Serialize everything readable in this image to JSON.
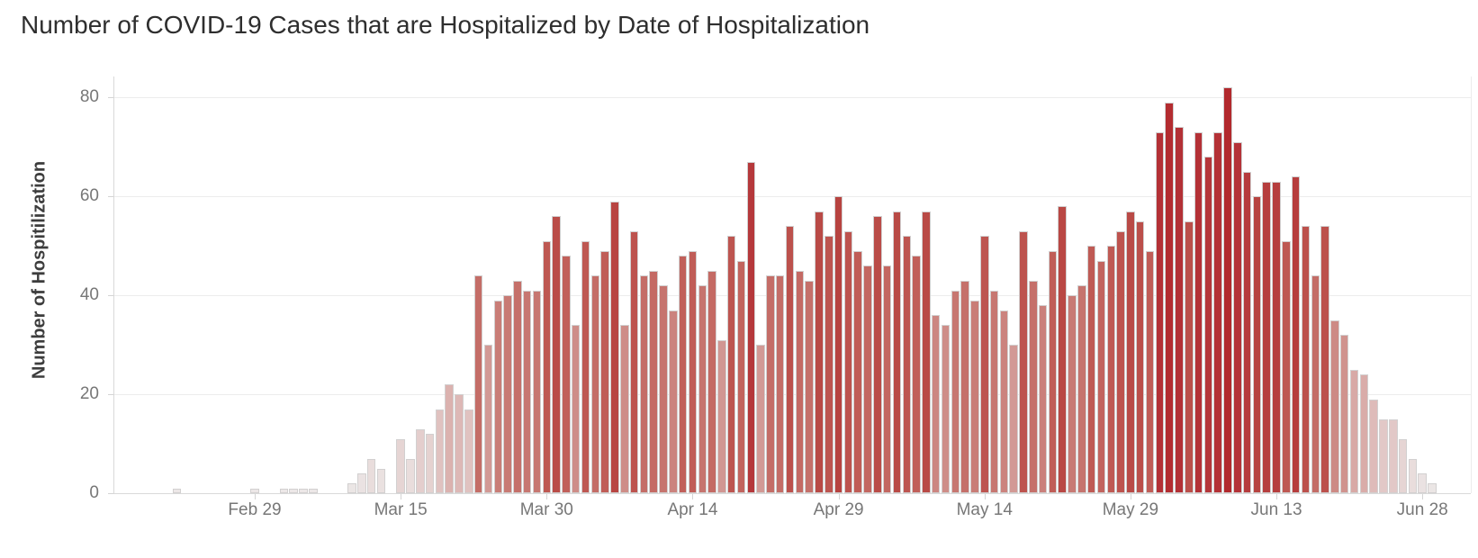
{
  "title": "Number of COVID-19 Cases that are Hospitalized by Date of Hospitalization",
  "y_axis": {
    "title": "Number of Hospitilization",
    "ticks": [
      0,
      20,
      40,
      60,
      80
    ]
  },
  "x_axis": {
    "ticks": [
      {
        "label": "Feb 29",
        "index": 8
      },
      {
        "label": "Mar 15",
        "index": 23
      },
      {
        "label": "Mar 30",
        "index": 38
      },
      {
        "label": "Apr 14",
        "index": 53
      },
      {
        "label": "Apr 29",
        "index": 68
      },
      {
        "label": "May 14",
        "index": 83
      },
      {
        "label": "May 29",
        "index": 98
      },
      {
        "label": "Jun 13",
        "index": 113
      },
      {
        "label": "Jun 28",
        "index": 128
      }
    ]
  },
  "colors": {
    "background": "#ffffff",
    "gridline": "#ececec",
    "axis_line": "#d9d9d9",
    "tick_mark": "#d4d4d4",
    "title_text": "#2e2e2e",
    "axis_text": "#777777",
    "y_title_text": "#3d3d3d",
    "bar_border": "#d2d0d0",
    "bar_low": "#ece9e9",
    "bar_high": "#b2292d"
  },
  "chart_data": {
    "type": "bar",
    "title": "Number of COVID-19 Cases that are Hospitalized by Date of Hospitalization",
    "xlabel": "",
    "ylabel": "Number of Hospitilization",
    "ylim": [
      0,
      85
    ],
    "grid": "horizontal",
    "legend": "none",
    "color_encoding": "value (light gray-pink for low counts to dark red for high counts)",
    "color_scale_stops": [
      [
        0,
        "#ece9e9"
      ],
      [
        10,
        "#e7d8d7"
      ],
      [
        20,
        "#ddb8b6"
      ],
      [
        30,
        "#d29995"
      ],
      [
        40,
        "#c87a74"
      ],
      [
        50,
        "#bf5a54"
      ],
      [
        60,
        "#b74340"
      ],
      [
        70,
        "#b43339"
      ],
      [
        82,
        "#b2292d"
      ]
    ],
    "x": [
      "Feb 21",
      "Feb 22",
      "Feb 23",
      "Feb 24",
      "Feb 25",
      "Feb 26",
      "Feb 27",
      "Feb 28",
      "Feb 29",
      "Mar 1",
      "Mar 2",
      "Mar 3",
      "Mar 4",
      "Mar 5",
      "Mar 6",
      "Mar 7",
      "Mar 8",
      "Mar 9",
      "Mar 10",
      "Mar 11",
      "Mar 12",
      "Mar 13",
      "Mar 14",
      "Mar 15",
      "Mar 16",
      "Mar 17",
      "Mar 18",
      "Mar 19",
      "Mar 20",
      "Mar 21",
      "Mar 22",
      "Mar 23",
      "Mar 24",
      "Mar 25",
      "Mar 26",
      "Mar 27",
      "Mar 28",
      "Mar 29",
      "Mar 30",
      "Mar 31",
      "Apr 1",
      "Apr 2",
      "Apr 3",
      "Apr 4",
      "Apr 5",
      "Apr 6",
      "Apr 7",
      "Apr 8",
      "Apr 9",
      "Apr 10",
      "Apr 11",
      "Apr 12",
      "Apr 13",
      "Apr 14",
      "Apr 15",
      "Apr 16",
      "Apr 17",
      "Apr 18",
      "Apr 19",
      "Apr 20",
      "Apr 21",
      "Apr 22",
      "Apr 23",
      "Apr 24",
      "Apr 25",
      "Apr 26",
      "Apr 27",
      "Apr 28",
      "Apr 29",
      "Apr 30",
      "May 1",
      "May 2",
      "May 3",
      "May 4",
      "May 5",
      "May 6",
      "May 7",
      "May 8",
      "May 9",
      "May 10",
      "May 11",
      "May 12",
      "May 13",
      "May 14",
      "May 15",
      "May 16",
      "May 17",
      "May 18",
      "May 19",
      "May 20",
      "May 21",
      "May 22",
      "May 23",
      "May 24",
      "May 25",
      "May 26",
      "May 27",
      "May 28",
      "May 29",
      "May 30",
      "May 31",
      "Jun 1",
      "Jun 2",
      "Jun 3",
      "Jun 4",
      "Jun 5",
      "Jun 6",
      "Jun 7",
      "Jun 8",
      "Jun 9",
      "Jun 10",
      "Jun 11",
      "Jun 12",
      "Jun 13",
      "Jun 14",
      "Jun 15",
      "Jun 16",
      "Jun 17",
      "Jun 18",
      "Jun 19",
      "Jun 20",
      "Jun 21",
      "Jun 22",
      "Jun 23",
      "Jun 24",
      "Jun 25",
      "Jun 26",
      "Jun 27",
      "Jun 28",
      "Jun 29"
    ],
    "values": [
      1,
      null,
      null,
      null,
      null,
      null,
      null,
      null,
      1,
      null,
      null,
      1,
      1,
      1,
      1,
      null,
      null,
      null,
      2,
      4,
      7,
      5,
      null,
      11,
      7,
      13,
      12,
      17,
      22,
      20,
      17,
      44,
      30,
      39,
      40,
      43,
      41,
      41,
      51,
      56,
      48,
      34,
      51,
      44,
      49,
      59,
      34,
      53,
      44,
      45,
      42,
      37,
      48,
      49,
      42,
      45,
      31,
      52,
      47,
      67,
      30,
      44,
      44,
      54,
      45,
      43,
      57,
      52,
      60,
      53,
      49,
      46,
      56,
      46,
      57,
      52,
      48,
      57,
      36,
      34,
      41,
      43,
      39,
      52,
      41,
      37,
      30,
      53,
      43,
      38,
      49,
      58,
      40,
      42,
      50,
      47,
      50,
      53,
      57,
      55,
      49,
      73,
      79,
      74,
      55,
      73,
      68,
      73,
      82,
      71,
      65,
      60,
      63,
      63,
      51,
      64,
      54,
      44,
      54,
      35,
      32,
      25,
      24,
      19,
      15,
      15,
      11,
      7,
      4,
      2
    ]
  }
}
